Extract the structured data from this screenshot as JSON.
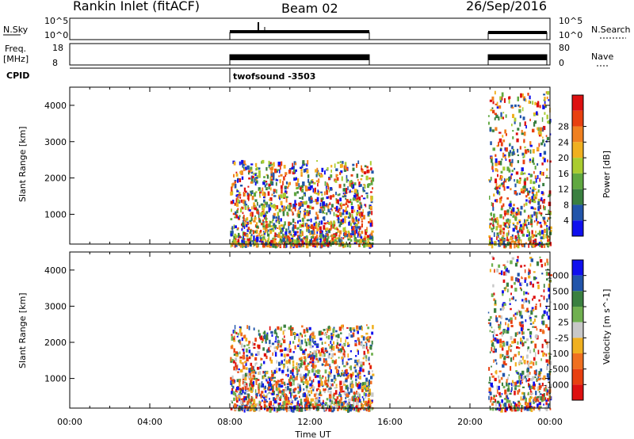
{
  "header": {
    "station": "Rankin Inlet (fitACF)",
    "beam": "Beam 02",
    "date": "26/Sep/2016"
  },
  "strip_panels": {
    "nsky_label": "N.Sky",
    "nsky_ticks": [
      "10^5",
      "10^0"
    ],
    "nsearch_label": "N.Search",
    "nsearch_ticks": [
      "10^5",
      "10^0"
    ],
    "freq_label_top": "Freq.",
    "freq_label_bottom": "[MHz]",
    "freq_ticks": [
      "18",
      "8"
    ],
    "nave_label": "Nave",
    "nave_ticks": [
      "80",
      "0"
    ],
    "cpid_label": "CPID",
    "cpid_text": "twofsound -3503"
  },
  "x_axis": {
    "label": "Time UT",
    "ticks": [
      "00:00",
      "04:00",
      "08:00",
      "12:00",
      "16:00",
      "20:00",
      "00:00"
    ]
  },
  "colors": {
    "power": [
      "#1010ee",
      "#2255aa",
      "#3a8040",
      "#60a840",
      "#aacc30",
      "#f0b020",
      "#f08020",
      "#e84010",
      "#dd1010"
    ],
    "velocity": [
      "#dd1010",
      "#e84010",
      "#f07020",
      "#f0b020",
      "#c8c8c8",
      "#70b050",
      "#3a8040",
      "#2255aa",
      "#1010ee"
    ]
  },
  "chart_data": [
    {
      "type": "heatmap",
      "name": "power",
      "ylabel": "Slant Range [km]",
      "yticks": [
        "1000",
        "2000",
        "3000",
        "4000"
      ],
      "ylim": [
        180,
        4500
      ],
      "xlim_hours": [
        0,
        24
      ],
      "colorbar_label": "Power [dB]",
      "colorbar_ticks": [
        "4",
        "8",
        "12",
        "16",
        "20",
        "24",
        "28"
      ],
      "colorbar_range": [
        0,
        32
      ],
      "data_blocks": [
        {
          "t_start": 8.0,
          "t_end": 15.1,
          "range_min": 180,
          "range_max": 2500
        },
        {
          "t_start": 20.9,
          "t_end": 24.0,
          "range_min": 180,
          "range_max": 4400
        }
      ]
    },
    {
      "type": "heatmap",
      "name": "velocity",
      "ylabel": "Slant Range [km]",
      "yticks": [
        "1000",
        "2000",
        "3000",
        "4000"
      ],
      "ylim": [
        180,
        4500
      ],
      "xlim_hours": [
        0,
        24
      ],
      "colorbar_label": "Velocity [m s^-1]",
      "colorbar_ticks": [
        "-1000",
        "-500",
        "-100",
        "-25",
        "25",
        "100",
        "500",
        "1000"
      ],
      "colorbar_range": [
        -1250,
        1250
      ],
      "data_blocks": [
        {
          "t_start": 8.0,
          "t_end": 15.1,
          "range_min": 180,
          "range_max": 2500
        },
        {
          "t_start": 20.9,
          "t_end": 24.0,
          "range_min": 180,
          "range_max": 4400
        }
      ]
    }
  ]
}
